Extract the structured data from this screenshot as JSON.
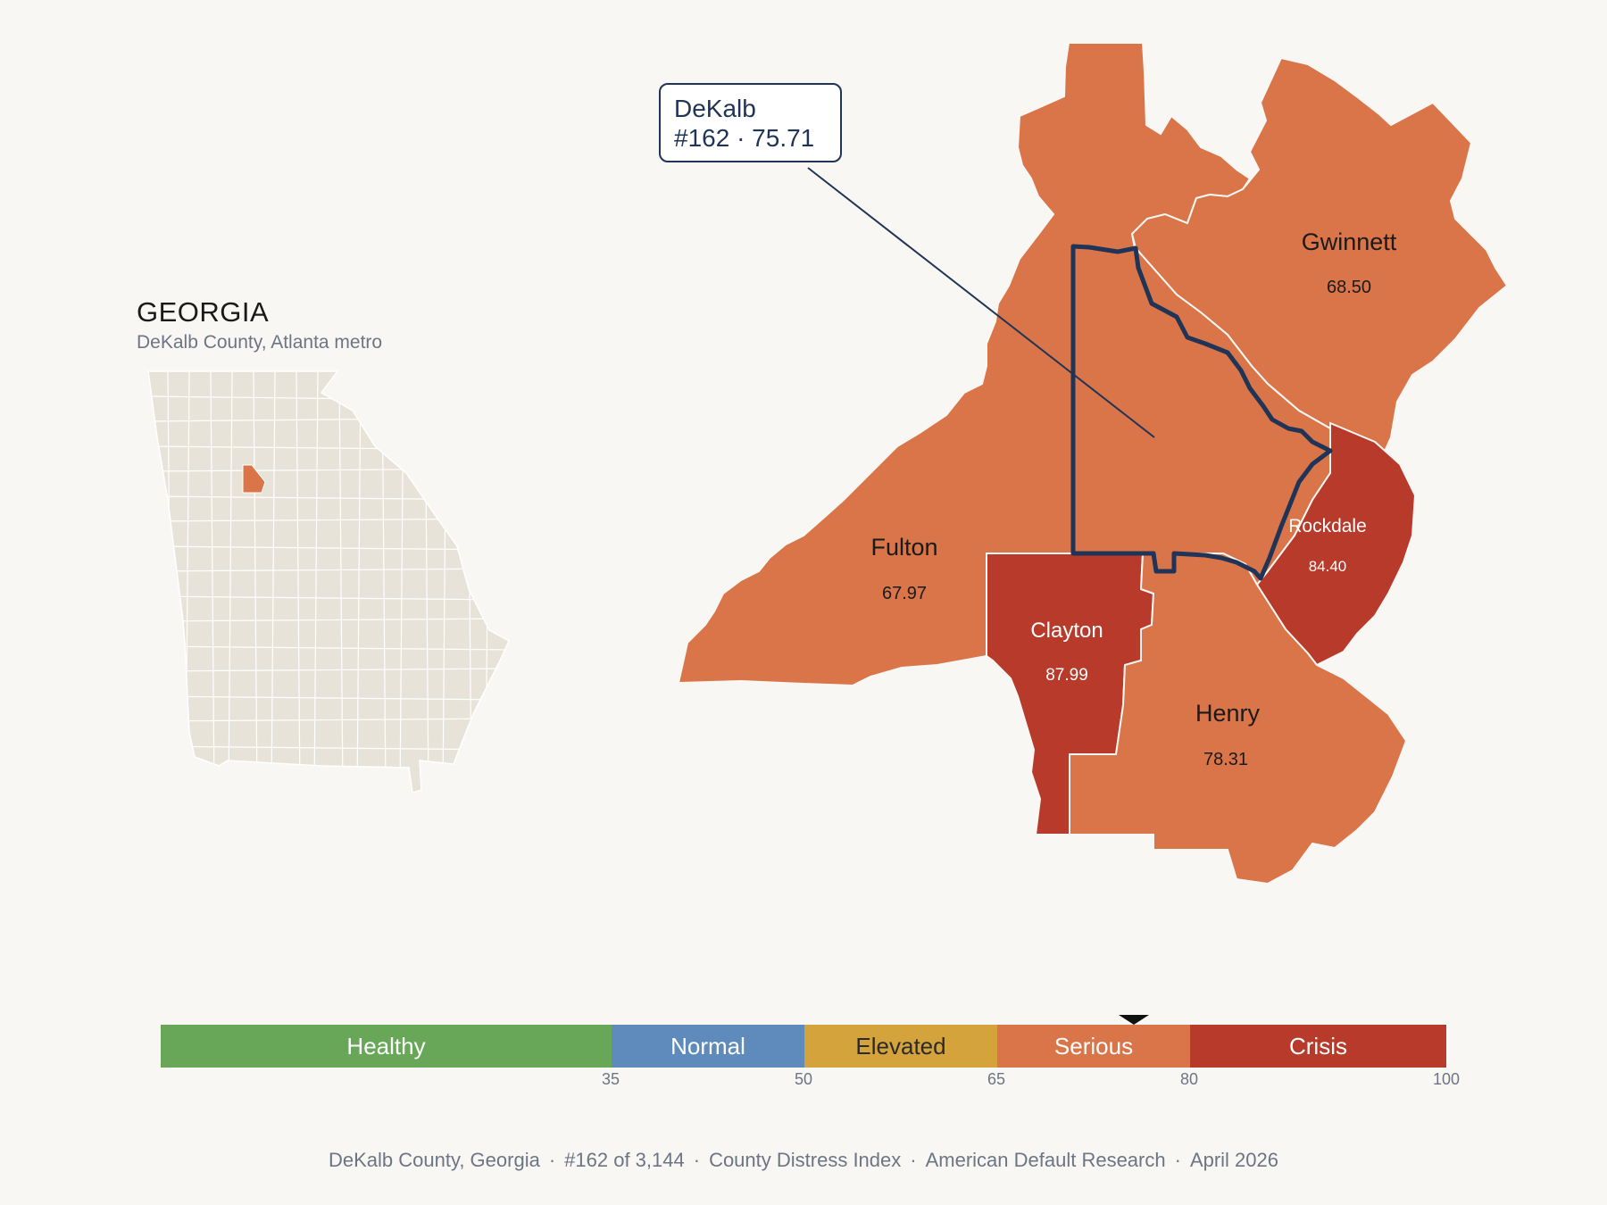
{
  "inset": {
    "state_name": "GEORGIA",
    "subtitle": "DeKalb County, Atlanta metro",
    "base_color": "#e8e3d9",
    "highlight_color": "#da7549"
  },
  "focus_county": {
    "name": "DeKalb",
    "rank_score": "#162 · 75.71",
    "outline_color": "#1f3456"
  },
  "counties": [
    {
      "name": "Gwinnett",
      "score": "68.50",
      "category": "Serious",
      "color": "#da7549"
    },
    {
      "name": "Fulton",
      "score": "67.97",
      "category": "Serious",
      "color": "#da7549"
    },
    {
      "name": "Rockdale",
      "score": "84.40",
      "category": "Crisis",
      "color": "#b73a2a"
    },
    {
      "name": "Clayton",
      "score": "87.99",
      "category": "Crisis",
      "color": "#b73a2a"
    },
    {
      "name": "Henry",
      "score": "78.31",
      "category": "Serious",
      "color": "#da7549"
    },
    {
      "name": "DeKalb",
      "score": "75.71",
      "category": "Serious",
      "color": "#da7549"
    }
  ],
  "scale": {
    "segments": [
      {
        "label": "Healthy",
        "from": 0,
        "to": 35,
        "color": "#68a758"
      },
      {
        "label": "Normal",
        "from": 35,
        "to": 50,
        "color": "#5e8bbb"
      },
      {
        "label": "Elevated",
        "from": 50,
        "to": 65,
        "color": "#d4a33b"
      },
      {
        "label": "Serious",
        "from": 65,
        "to": 80,
        "color": "#da7549"
      },
      {
        "label": "Crisis",
        "from": 80,
        "to": 100,
        "color": "#b73a2a"
      }
    ],
    "ticks": [
      "35",
      "50",
      "65",
      "80",
      "100"
    ],
    "marker_value": 75.71
  },
  "footer": {
    "place": "DeKalb County, Georgia",
    "rank": "#162 of 3,144",
    "index": "County Distress Index",
    "source": "American Default Research",
    "date": "April 2026",
    "separator": "·"
  }
}
